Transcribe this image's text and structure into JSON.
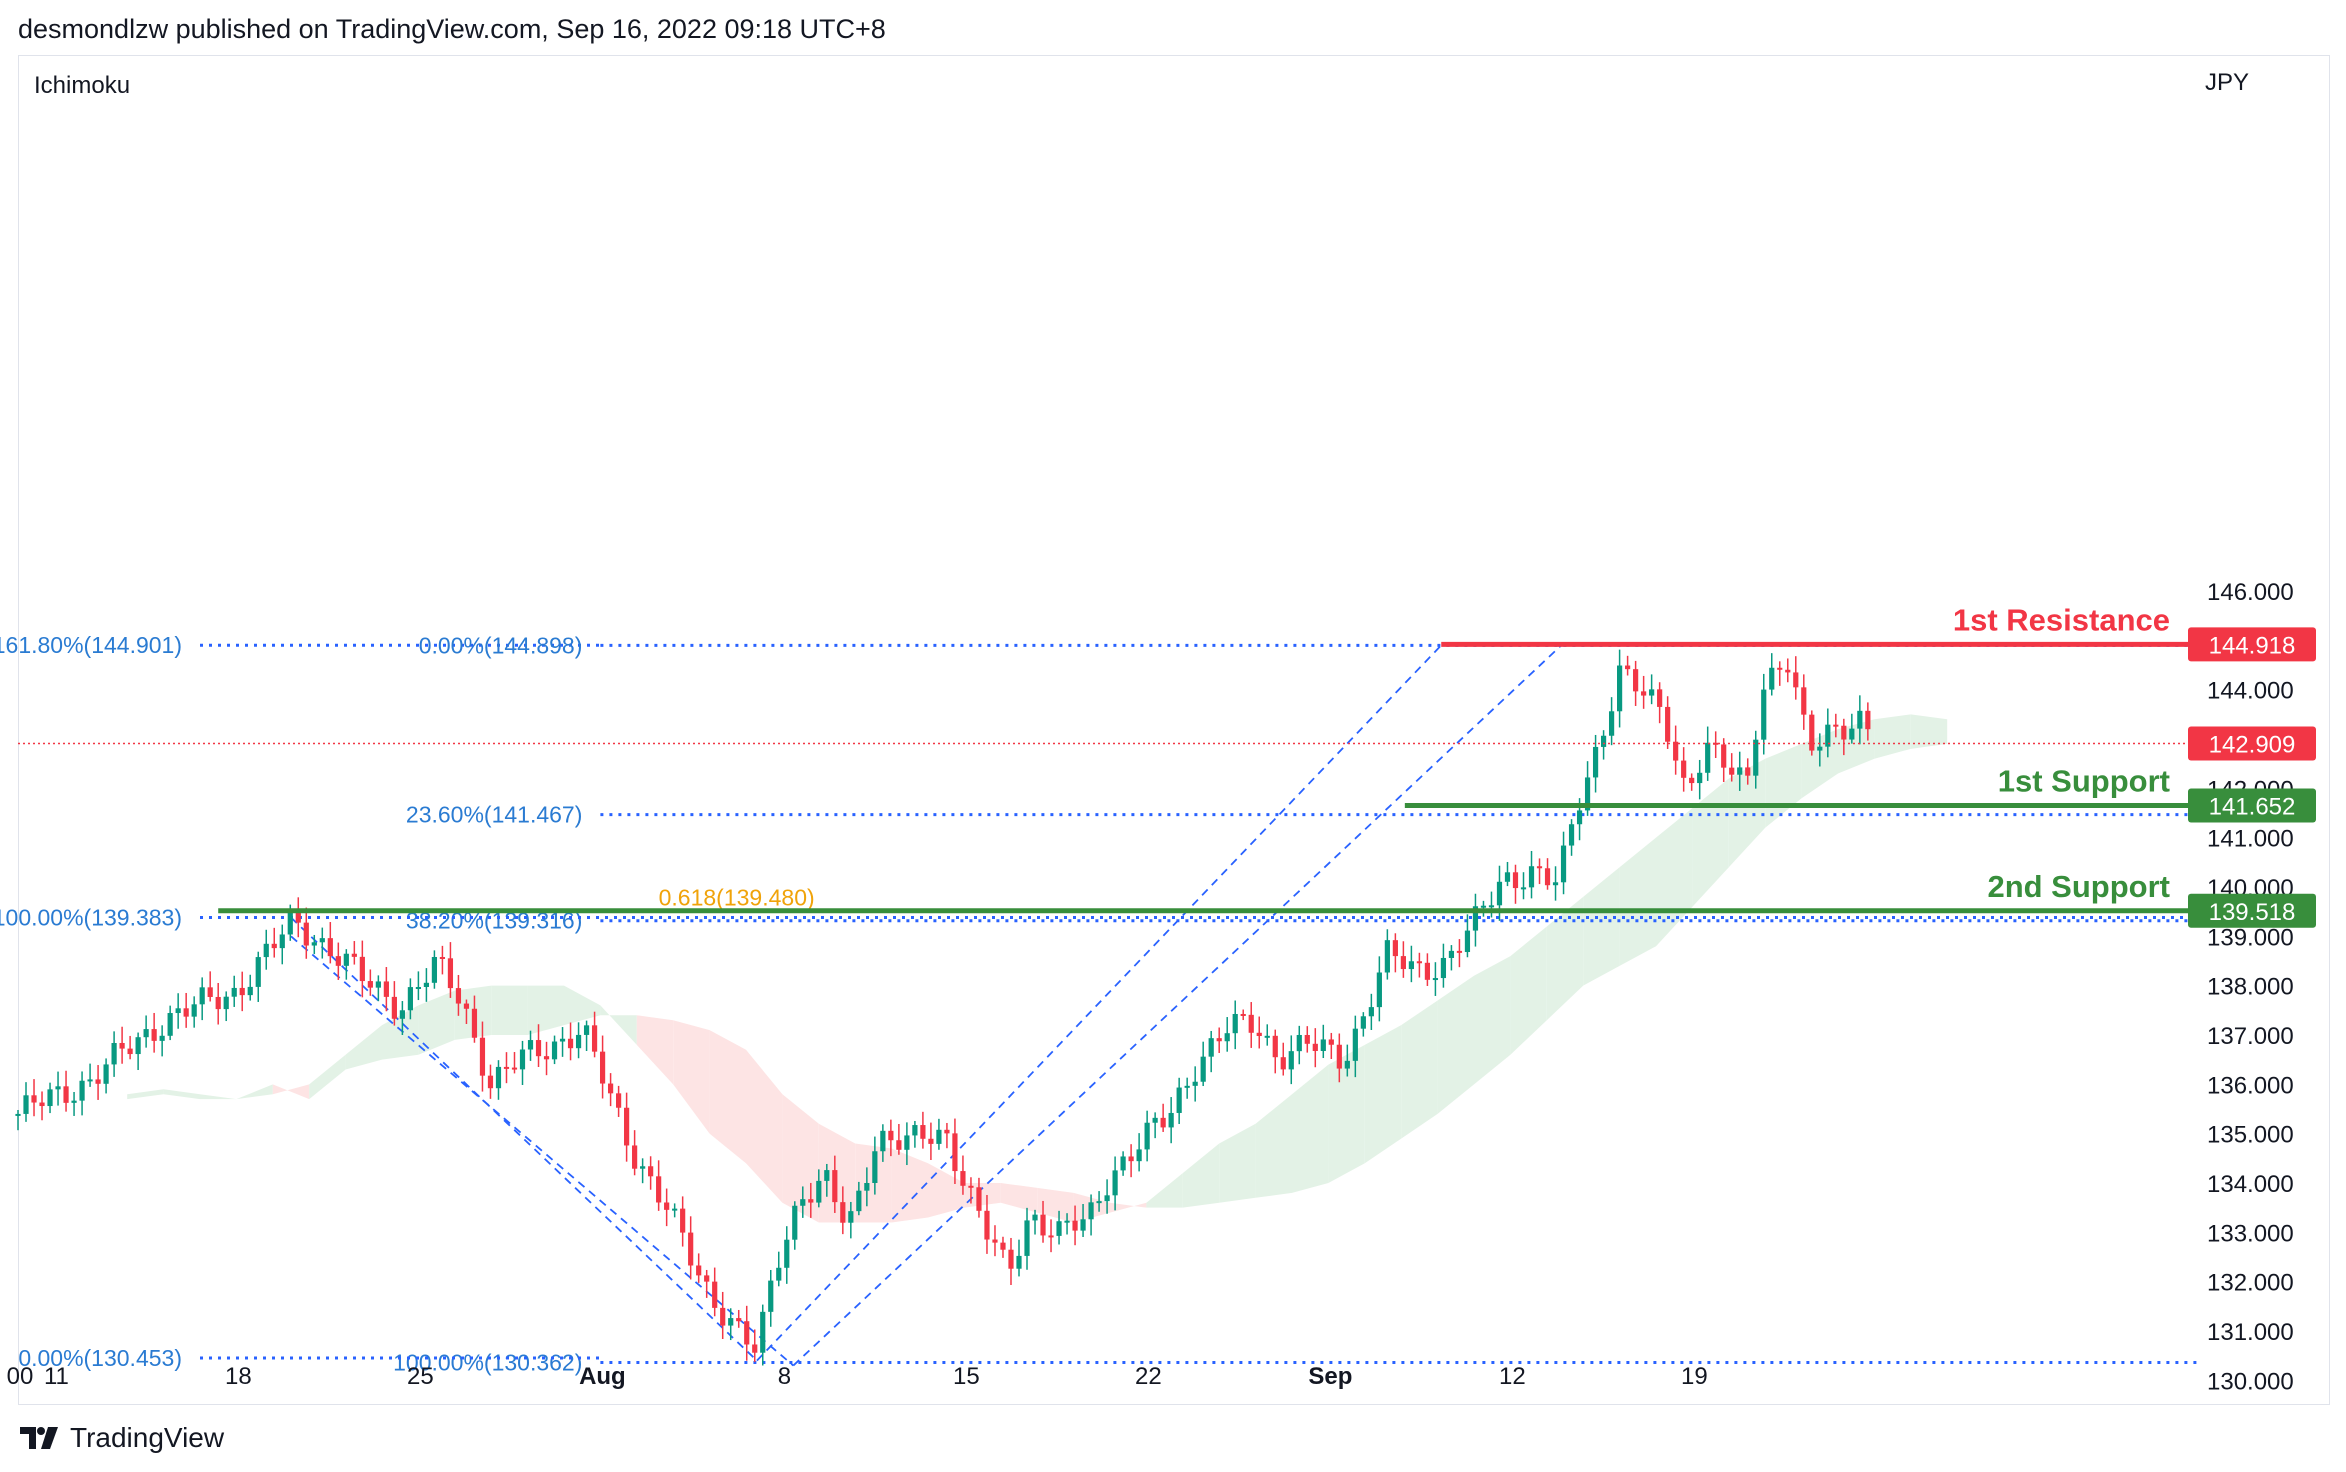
{
  "header": {
    "publisher_line": "desmondlzw published on TradingView.com, Sep 16, 2022 09:18 UTC+8"
  },
  "footer": {
    "brand": "TradingView",
    "logo_icon": "tradingview-logo-icon"
  },
  "chart_data": {
    "type": "candlestick",
    "indicator": "Ichimoku",
    "currency": "JPY",
    "y_ticks": [
      "146.000",
      "144.000",
      "142.000",
      "141.000",
      "140.000",
      "139.000",
      "138.000",
      "137.000",
      "136.000",
      "135.000",
      "134.000",
      "133.000",
      "132.000",
      "131.000",
      "130.000"
    ],
    "x_ticks": [
      {
        "label": "00",
        "day": 0,
        "bold": false
      },
      {
        "label": "11",
        "day": 1,
        "bold": false
      },
      {
        "label": "18",
        "day": 6,
        "bold": false
      },
      {
        "label": "25",
        "day": 11,
        "bold": false
      },
      {
        "label": "Aug",
        "day": 16,
        "bold": true
      },
      {
        "label": "8",
        "day": 21,
        "bold": false
      },
      {
        "label": "15",
        "day": 26,
        "bold": false
      },
      {
        "label": "22",
        "day": 31,
        "bold": false
      },
      {
        "label": "Sep",
        "day": 36,
        "bold": true
      },
      {
        "label": "12",
        "day": 41,
        "bold": false
      },
      {
        "label": "19",
        "day": 46,
        "bold": false
      }
    ],
    "price_badges": [
      {
        "label": "144.918",
        "value": 144.918,
        "color": "#f23645"
      },
      {
        "label": "142.909",
        "value": 142.909,
        "color": "#f23645"
      },
      {
        "label": "141.652",
        "value": 141.652,
        "color": "#388e3c"
      },
      {
        "label": "139.518",
        "value": 139.518,
        "color": "#388e3c"
      }
    ],
    "levels": [
      {
        "label": "1st Resistance",
        "value": 144.918,
        "color": "#f23645"
      },
      {
        "label": "1st Support",
        "value": 141.652,
        "color": "#388e3c"
      },
      {
        "label": "2nd Support",
        "value": 139.518,
        "color": "#388e3c"
      }
    ],
    "current_price": 142.909,
    "fibonacci": [
      {
        "label": "161.80%(144.901)",
        "value": 144.901,
        "from_day": 5,
        "to_day": 16
      },
      {
        "label": "0.00%(144.898)",
        "value": 144.898,
        "from_day": 16,
        "to_day": 60
      },
      {
        "label": "23.60%(141.467)",
        "value": 141.467,
        "from_day": 16,
        "to_day": 60
      },
      {
        "label": "38.20%(139.316)",
        "value": 139.316,
        "from_day": 16,
        "to_day": 60
      },
      {
        "label": "0.618(139.480)",
        "value": 139.48,
        "color": "#f0a30a"
      },
      {
        "label": "100.00%(139.383)",
        "value": 139.383,
        "from_day": 5,
        "to_day": 60
      },
      {
        "label": "100.00%(130.362)",
        "value": 130.362,
        "from_day": 16,
        "to_day": 60
      },
      {
        "label": "0.00%(130.453)",
        "value": 130.453,
        "from_day": 5,
        "to_day": 16
      }
    ],
    "trend_channels": [
      {
        "points": [
          [
            7.5,
            139.38
          ],
          [
            20.3,
            130.4
          ]
        ]
      },
      {
        "points": [
          [
            7.5,
            139.0
          ],
          [
            21.3,
            130.3
          ]
        ]
      },
      {
        "points": [
          [
            20.3,
            130.4
          ],
          [
            39.1,
            144.9
          ]
        ]
      },
      {
        "points": [
          [
            21.3,
            130.3
          ],
          [
            42.4,
            144.9
          ]
        ]
      }
    ],
    "anchors": [
      {
        "day": 0,
        "price": 135.4
      },
      {
        "day": 2,
        "price": 136.1
      },
      {
        "day": 4,
        "price": 137.3
      },
      {
        "day": 6,
        "price": 137.9
      },
      {
        "day": 7.6,
        "price": 139.3
      },
      {
        "day": 8.5,
        "price": 138.8
      },
      {
        "day": 9.5,
        "price": 138.1
      },
      {
        "day": 10.5,
        "price": 137.6
      },
      {
        "day": 11.5,
        "price": 138.4
      },
      {
        "day": 12.2,
        "price": 137.7
      },
      {
        "day": 13,
        "price": 136.0
      },
      {
        "day": 14,
        "price": 136.6
      },
      {
        "day": 15.5,
        "price": 137.1
      },
      {
        "day": 16.8,
        "price": 134.8
      },
      {
        "day": 17.8,
        "price": 133.5
      },
      {
        "day": 18.8,
        "price": 132.0
      },
      {
        "day": 19.6,
        "price": 131.2
      },
      {
        "day": 20.3,
        "price": 130.5
      },
      {
        "day": 20.8,
        "price": 132.3
      },
      {
        "day": 21.5,
        "price": 133.8
      },
      {
        "day": 22.2,
        "price": 134.0
      },
      {
        "day": 22.8,
        "price": 133.0
      },
      {
        "day": 23.6,
        "price": 135.0
      },
      {
        "day": 24.5,
        "price": 134.8
      },
      {
        "day": 25.5,
        "price": 135.0
      },
      {
        "day": 26.6,
        "price": 133.0
      },
      {
        "day": 27.2,
        "price": 132.1
      },
      {
        "day": 27.8,
        "price": 133.4
      },
      {
        "day": 28.6,
        "price": 133.0
      },
      {
        "day": 29.4,
        "price": 133.2
      },
      {
        "day": 30.0,
        "price": 134.2
      },
      {
        "day": 30.8,
        "price": 134.8
      },
      {
        "day": 31.6,
        "price": 135.3
      },
      {
        "day": 32.4,
        "price": 136.5
      },
      {
        "day": 33.2,
        "price": 137.1
      },
      {
        "day": 34.0,
        "price": 137.2
      },
      {
        "day": 34.6,
        "price": 136.6
      },
      {
        "day": 35.4,
        "price": 136.8
      },
      {
        "day": 36.4,
        "price": 136.5
      },
      {
        "day": 37.0,
        "price": 137.5
      },
      {
        "day": 37.6,
        "price": 138.6
      },
      {
        "day": 38.4,
        "price": 138.3
      },
      {
        "day": 39.2,
        "price": 138.5
      },
      {
        "day": 40.0,
        "price": 139.2
      },
      {
        "day": 40.8,
        "price": 140.2
      },
      {
        "day": 41.6,
        "price": 140.3
      },
      {
        "day": 42.3,
        "price": 140.0
      },
      {
        "day": 42.8,
        "price": 141.6
      },
      {
        "day": 43.4,
        "price": 142.9
      },
      {
        "day": 44.0,
        "price": 144.3
      },
      {
        "day": 44.6,
        "price": 143.9
      },
      {
        "day": 45.2,
        "price": 143.6
      },
      {
        "day": 45.8,
        "price": 142.0
      },
      {
        "day": 46.4,
        "price": 142.7
      },
      {
        "day": 47.0,
        "price": 142.4
      },
      {
        "day": 47.5,
        "price": 142.2
      },
      {
        "day": 47.9,
        "price": 144.1
      },
      {
        "day": 48.6,
        "price": 144.5
      },
      {
        "day": 49.2,
        "price": 142.8
      },
      {
        "day": 49.8,
        "price": 143.3
      },
      {
        "day": 50.6,
        "price": 143.3
      },
      {
        "day": 51.0,
        "price": 142.9
      }
    ],
    "cloud": [
      {
        "day": 3,
        "a": 135.8,
        "b": 135.7
      },
      {
        "day": 4,
        "a": 135.9,
        "b": 135.8
      },
      {
        "day": 5,
        "a": 135.8,
        "b": 135.7
      },
      {
        "day": 6,
        "a": 135.7,
        "b": 135.7
      },
      {
        "day": 7,
        "a": 135.8,
        "b": 136.0
      },
      {
        "day": 8,
        "a": 136.0,
        "b": 135.7
      },
      {
        "day": 9,
        "a": 136.6,
        "b": 136.3
      },
      {
        "day": 10,
        "a": 137.2,
        "b": 136.5
      },
      {
        "day": 11,
        "a": 137.6,
        "b": 136.6
      },
      {
        "day": 12,
        "a": 137.9,
        "b": 136.9
      },
      {
        "day": 13,
        "a": 138.0,
        "b": 137.0
      },
      {
        "day": 14,
        "a": 138.0,
        "b": 137.0
      },
      {
        "day": 15,
        "a": 138.0,
        "b": 137.2
      },
      {
        "day": 16,
        "a": 137.6,
        "b": 137.4
      },
      {
        "day": 17,
        "a": 136.8,
        "b": 137.4
      },
      {
        "day": 18,
        "a": 136.0,
        "b": 137.3
      },
      {
        "day": 19,
        "a": 135.0,
        "b": 137.1
      },
      {
        "day": 20,
        "a": 134.4,
        "b": 136.7
      },
      {
        "day": 21,
        "a": 133.6,
        "b": 135.8
      },
      {
        "day": 22,
        "a": 133.2,
        "b": 135.2
      },
      {
        "day": 23,
        "a": 133.2,
        "b": 134.8
      },
      {
        "day": 24,
        "a": 133.2,
        "b": 134.7
      },
      {
        "day": 25,
        "a": 133.3,
        "b": 134.4
      },
      {
        "day": 26,
        "a": 133.5,
        "b": 134.0
      },
      {
        "day": 27,
        "a": 133.6,
        "b": 134.0
      },
      {
        "day": 28,
        "a": 133.4,
        "b": 133.9
      },
      {
        "day": 29,
        "a": 133.2,
        "b": 133.8
      },
      {
        "day": 30,
        "a": 133.4,
        "b": 133.6
      },
      {
        "day": 31,
        "a": 133.6,
        "b": 133.5
      },
      {
        "day": 32,
        "a": 134.2,
        "b": 133.5
      },
      {
        "day": 33,
        "a": 134.8,
        "b": 133.6
      },
      {
        "day": 34,
        "a": 135.2,
        "b": 133.7
      },
      {
        "day": 35,
        "a": 135.8,
        "b": 133.8
      },
      {
        "day": 36,
        "a": 136.4,
        "b": 134.0
      },
      {
        "day": 37,
        "a": 136.8,
        "b": 134.4
      },
      {
        "day": 38,
        "a": 137.2,
        "b": 134.9
      },
      {
        "day": 39,
        "a": 137.7,
        "b": 135.4
      },
      {
        "day": 40,
        "a": 138.2,
        "b": 136.0
      },
      {
        "day": 41,
        "a": 138.6,
        "b": 136.6
      },
      {
        "day": 42,
        "a": 139.2,
        "b": 137.3
      },
      {
        "day": 43,
        "a": 139.8,
        "b": 138.0
      },
      {
        "day": 44,
        "a": 140.4,
        "b": 138.4
      },
      {
        "day": 45,
        "a": 141.0,
        "b": 138.8
      },
      {
        "day": 46,
        "a": 141.6,
        "b": 139.6
      },
      {
        "day": 47,
        "a": 142.2,
        "b": 140.4
      },
      {
        "day": 48,
        "a": 142.6,
        "b": 141.2
      },
      {
        "day": 49,
        "a": 142.9,
        "b": 141.8
      },
      {
        "day": 50,
        "a": 143.2,
        "b": 142.3
      },
      {
        "day": 51,
        "a": 143.4,
        "b": 142.6
      },
      {
        "day": 52,
        "a": 143.5,
        "b": 142.8
      },
      {
        "day": 53,
        "a": 143.4,
        "b": 142.9
      }
    ],
    "colors": {
      "up": "#089981",
      "down": "#f23645",
      "fib": "#2962ff",
      "fib_text": "#2a7bd2",
      "cloud_up": "#e3f2e6",
      "cloud_down": "#fde4e4"
    }
  }
}
